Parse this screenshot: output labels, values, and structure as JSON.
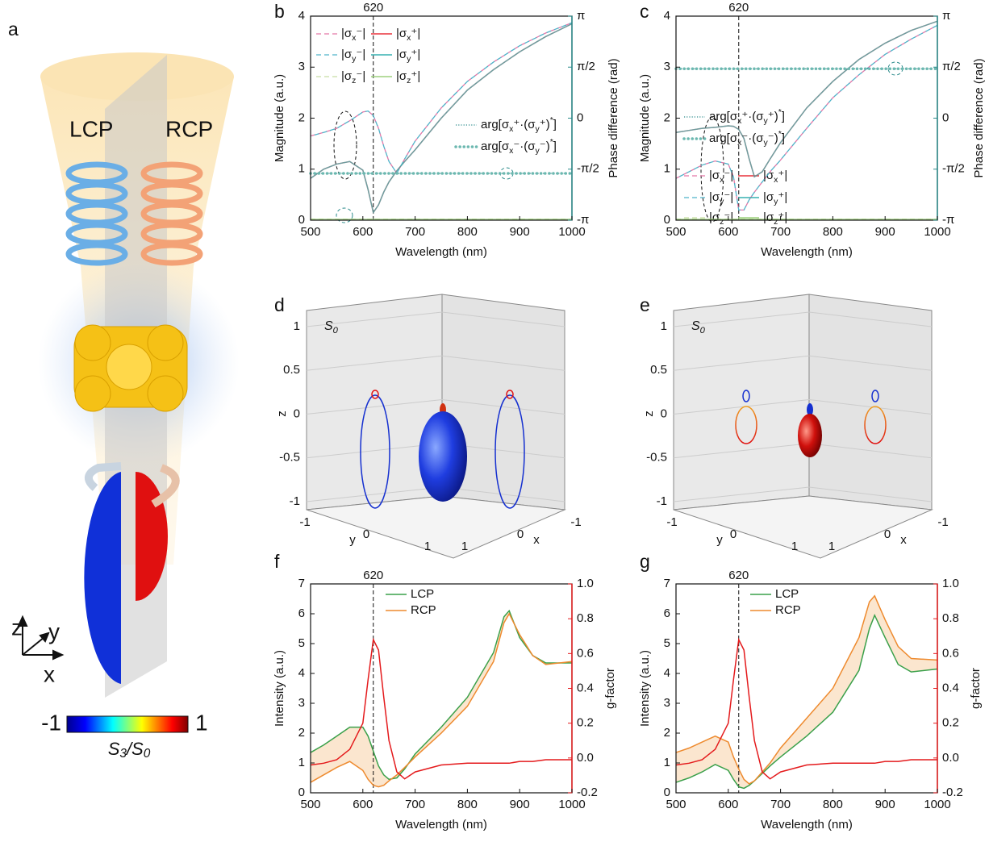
{
  "panel_labels": [
    "a",
    "b",
    "c",
    "d",
    "e",
    "f",
    "g"
  ],
  "illustration": {
    "lcp": "LCP",
    "rcp": "RCP",
    "axes": {
      "z": "z",
      "y": "y",
      "x": "x"
    },
    "colorbar": {
      "min": -1,
      "max": 1,
      "label": "S3/S0"
    }
  },
  "chart_data": [
    {
      "type": "line",
      "xlabel": "Wavelength (nm)",
      "ylabel": "Magnitude (a.u.)",
      "y2label": "Phase difference (rad)",
      "xlim": [
        500,
        1000
      ],
      "xticks": [
        500,
        600,
        700,
        800,
        900,
        1000
      ],
      "ylim": [
        0,
        4
      ],
      "yticks": [
        0,
        1,
        2,
        3,
        4
      ],
      "y2lim": [
        -3.14159,
        3.14159
      ],
      "y2ticks": [
        {
          "value": -3.14159,
          "label": "-π"
        },
        {
          "value": -1.5708,
          "label": "-π/2"
        },
        0,
        {
          "value": 1.5708,
          "label": "π/2"
        },
        {
          "value": 3.14159,
          "label": "π"
        }
      ],
      "y2color": "#2a8a8a",
      "vline": 620,
      "x": [
        500,
        525,
        550,
        575,
        600,
        610,
        620,
        630,
        640,
        650,
        665,
        680,
        700,
        750,
        800,
        850,
        900,
        950,
        1000
      ],
      "series": [
        {
          "name": "|σx⁻|",
          "color": "#e377a8",
          "style": "dashed",
          "values": [
            1.65,
            1.72,
            1.8,
            1.95,
            2.12,
            2.14,
            2.05,
            1.8,
            1.45,
            1.15,
            0.92,
            1.2,
            1.55,
            2.2,
            2.72,
            3.1,
            3.42,
            3.67,
            3.87
          ]
        },
        {
          "name": "|σx⁺|",
          "color": "#e8323c",
          "style": "solid",
          "values": [
            0.82,
            1.0,
            1.1,
            1.15,
            0.98,
            0.6,
            0.15,
            0.3,
            0.55,
            0.75,
            0.97,
            1.15,
            1.38,
            2.0,
            2.55,
            2.95,
            3.3,
            3.6,
            3.85
          ]
        },
        {
          "name": "|σy⁻|",
          "color": "#4fb3c9",
          "style": "dashed",
          "values": [
            1.65,
            1.72,
            1.8,
            1.95,
            2.12,
            2.14,
            2.05,
            1.8,
            1.45,
            1.15,
            0.92,
            1.2,
            1.55,
            2.2,
            2.72,
            3.1,
            3.42,
            3.67,
            3.87
          ]
        },
        {
          "name": "|σy⁺|",
          "color": "#36b0b0",
          "style": "solid",
          "values": [
            0.82,
            1.0,
            1.1,
            1.15,
            0.98,
            0.6,
            0.15,
            0.3,
            0.55,
            0.75,
            0.97,
            1.15,
            1.38,
            2.0,
            2.55,
            2.95,
            3.3,
            3.6,
            3.85
          ]
        },
        {
          "name": "|σz⁻|",
          "color": "#c6dda4",
          "style": "dashed",
          "values": [
            0.02,
            0.02,
            0.02,
            0.02,
            0.02,
            0.02,
            0.02,
            0.02,
            0.02,
            0.02,
            0.02,
            0.02,
            0.02,
            0.02,
            0.02,
            0.02,
            0.02,
            0.02,
            0.02
          ]
        },
        {
          "name": "|σz⁺|",
          "color": "#9dd07e",
          "style": "solid",
          "values": [
            0.02,
            0.02,
            0.02,
            0.02,
            0.02,
            0.02,
            0.02,
            0.02,
            0.02,
            0.02,
            0.02,
            0.02,
            0.02,
            0.02,
            0.02,
            0.02,
            0.02,
            0.02,
            0.02
          ]
        },
        {
          "name": "arg[σx⁺·(σy⁺)*]",
          "color": "#2a8a8a",
          "style": "dotted",
          "axis": "y2",
          "values": [
            -1.7,
            -1.7,
            -1.7,
            -1.7,
            -1.7,
            -1.7,
            -1.7,
            -1.7,
            -1.7,
            -1.7,
            -1.7,
            -1.7,
            -1.7,
            -1.7,
            -1.7,
            -1.7,
            -1.7,
            -1.7,
            -1.7
          ]
        },
        {
          "name": "arg[σx⁻·(σy⁻)*]",
          "color": "#6cb8b0",
          "style": "bold-dotted",
          "axis": "y2",
          "values": [
            -1.7,
            -1.7,
            -1.7,
            -1.7,
            -1.7,
            -1.7,
            -1.7,
            -1.7,
            -1.7,
            -1.7,
            -1.7,
            -1.7,
            -1.7,
            -1.7,
            -1.7,
            -1.7,
            -1.7,
            -1.7,
            -1.7
          ]
        }
      ]
    },
    {
      "type": "line",
      "xlabel": "Wavelength (nm)",
      "ylabel": "Magnitude (a.u.)",
      "y2label": "Phase difference (rad)",
      "xlim": [
        500,
        1000
      ],
      "xticks": [
        500,
        600,
        700,
        800,
        900,
        1000
      ],
      "ylim": [
        0,
        4
      ],
      "yticks": [
        0,
        1,
        2,
        3,
        4
      ],
      "y2lim": [
        -3.14159,
        3.14159
      ],
      "y2ticks": [
        {
          "value": -3.14159,
          "label": "-π"
        },
        {
          "value": -1.5708,
          "label": "-π/2"
        },
        0,
        {
          "value": 1.5708,
          "label": "π/2"
        },
        {
          "value": 3.14159,
          "label": "π"
        }
      ],
      "y2color": "#2a8a8a",
      "vline": 620,
      "x": [
        500,
        525,
        550,
        575,
        600,
        610,
        620,
        630,
        640,
        650,
        665,
        680,
        700,
        750,
        800,
        850,
        900,
        950,
        1000
      ],
      "series": [
        {
          "name": "|σx⁻|",
          "color": "#e377a8",
          "style": "dashed",
          "values": [
            0.82,
            0.95,
            1.08,
            1.16,
            1.1,
            0.85,
            0.2,
            0.2,
            0.4,
            0.55,
            0.75,
            0.95,
            1.18,
            1.8,
            2.4,
            2.85,
            3.25,
            3.55,
            3.82
          ]
        },
        {
          "name": "|σx⁺|",
          "color": "#e8323c",
          "style": "solid",
          "values": [
            1.72,
            1.76,
            1.8,
            1.82,
            1.85,
            1.84,
            1.78,
            1.6,
            1.2,
            0.85,
            0.95,
            1.2,
            1.52,
            2.2,
            2.72,
            3.15,
            3.47,
            3.72,
            3.9
          ]
        },
        {
          "name": "|σy⁻|",
          "color": "#4fb3c9",
          "style": "dashed",
          "values": [
            0.82,
            0.95,
            1.08,
            1.16,
            1.1,
            0.85,
            0.2,
            0.2,
            0.4,
            0.55,
            0.75,
            0.95,
            1.18,
            1.8,
            2.4,
            2.85,
            3.25,
            3.55,
            3.82
          ]
        },
        {
          "name": "|σy⁺|",
          "color": "#36b0b0",
          "style": "solid",
          "values": [
            1.72,
            1.76,
            1.8,
            1.82,
            1.85,
            1.84,
            1.78,
            1.6,
            1.2,
            0.85,
            0.95,
            1.2,
            1.52,
            2.2,
            2.72,
            3.15,
            3.47,
            3.72,
            3.9
          ]
        },
        {
          "name": "|σz⁻|",
          "color": "#c6dda4",
          "style": "dashed",
          "values": [
            0.02,
            0.02,
            0.02,
            0.02,
            0.02,
            0.02,
            0.02,
            0.02,
            0.02,
            0.02,
            0.02,
            0.02,
            0.02,
            0.02,
            0.02,
            0.02,
            0.02,
            0.02,
            0.02
          ]
        },
        {
          "name": "|σz⁺|",
          "color": "#9dd07e",
          "style": "solid",
          "values": [
            0.02,
            0.02,
            0.02,
            0.02,
            0.02,
            0.02,
            0.02,
            0.02,
            0.02,
            0.02,
            0.02,
            0.02,
            0.02,
            0.02,
            0.02,
            0.02,
            0.02,
            0.02,
            0.02
          ]
        },
        {
          "name": "arg[σx⁺·(σy⁺)*]",
          "color": "#2a8a8a",
          "style": "dotted",
          "axis": "y2",
          "values": [
            1.52,
            1.52,
            1.52,
            1.52,
            1.52,
            1.52,
            1.52,
            1.52,
            1.52,
            1.52,
            1.52,
            1.52,
            1.52,
            1.52,
            1.52,
            1.52,
            1.52,
            1.52,
            1.52
          ]
        },
        {
          "name": "arg[σx⁻·(σy⁻)*]",
          "color": "#6cb8b0",
          "style": "bold-dotted",
          "axis": "y2",
          "values": [
            1.52,
            1.52,
            1.52,
            1.52,
            1.52,
            1.52,
            1.52,
            1.52,
            1.52,
            1.52,
            1.52,
            1.52,
            1.52,
            1.52,
            1.52,
            1.52,
            1.52,
            1.52,
            1.52
          ]
        }
      ]
    },
    {
      "type": "surface3d",
      "annotation": "S0",
      "xlabel": "x",
      "ylabel": "y",
      "zlabel": "z",
      "xlim": [
        -1,
        1
      ],
      "ylim": [
        -1,
        1
      ],
      "zlim": [
        -1,
        1
      ],
      "xticks": [
        -1,
        0,
        1
      ],
      "yticks": [
        -1,
        0,
        1
      ],
      "zticks": [
        -1,
        -0.5,
        0,
        0.5,
        1
      ]
    },
    {
      "type": "surface3d",
      "annotation": "S0",
      "xlabel": "x",
      "ylabel": "y",
      "zlabel": "z",
      "xlim": [
        -1,
        1
      ],
      "ylim": [
        -1,
        1
      ],
      "zlim": [
        -1,
        1
      ],
      "xticks": [
        -1,
        0,
        1
      ],
      "yticks": [
        -1,
        0,
        1
      ],
      "zticks": [
        -1,
        -0.5,
        0,
        0.5,
        1
      ]
    },
    {
      "type": "line",
      "xlabel": "Wavelength (nm)",
      "ylabel": "Intensity (a.u.)",
      "y2label": "g-factor",
      "xlim": [
        500,
        1000
      ],
      "xticks": [
        500,
        600,
        700,
        800,
        900,
        1000
      ],
      "ylim": [
        0,
        7
      ],
      "yticks": [
        0,
        1,
        2,
        3,
        4,
        5,
        6,
        7
      ],
      "y2lim": [
        -0.2,
        1.0
      ],
      "y2ticks": [
        -0.2,
        {
          "value": 0,
          "label": "0.0"
        },
        0.2,
        0.4,
        0.6,
        0.8,
        {
          "value": 1,
          "label": "1.0"
        }
      ],
      "y2color": "#e41a1c",
      "vline": 620,
      "fill_between": {
        "series": [
          0,
          1
        ],
        "color": "#fbe6cf"
      },
      "x": [
        500,
        525,
        550,
        575,
        600,
        610,
        620,
        630,
        640,
        650,
        665,
        680,
        700,
        750,
        800,
        850,
        870,
        880,
        900,
        925,
        950,
        1000
      ],
      "series": [
        {
          "name": "LCP",
          "color": "#3aa04a",
          "style": "solid",
          "values": [
            1.35,
            1.6,
            1.9,
            2.2,
            2.2,
            1.9,
            1.4,
            0.9,
            0.6,
            0.45,
            0.5,
            0.8,
            1.3,
            2.2,
            3.2,
            4.7,
            5.9,
            6.1,
            5.2,
            4.6,
            4.35,
            4.35
          ]
        },
        {
          "name": "RCP",
          "color": "#ee8a2e",
          "style": "solid",
          "values": [
            0.35,
            0.6,
            0.85,
            1.05,
            0.75,
            0.45,
            0.25,
            0.2,
            0.25,
            0.4,
            0.6,
            0.85,
            1.2,
            2.0,
            2.9,
            4.4,
            5.7,
            6.0,
            5.3,
            4.6,
            4.3,
            4.4
          ]
        },
        {
          "color": "#e41a1c",
          "style": "solid",
          "axis": "y2",
          "values": [
            -0.04,
            -0.03,
            -0.01,
            0.05,
            0.2,
            0.45,
            0.68,
            0.62,
            0.35,
            0.1,
            -0.08,
            -0.12,
            -0.08,
            -0.04,
            -0.03,
            -0.03,
            -0.03,
            -0.03,
            -0.02,
            -0.02,
            -0.01,
            -0.01
          ]
        }
      ]
    },
    {
      "type": "line",
      "xlabel": "Wavelength (nm)",
      "ylabel": "Intensity (a.u.)",
      "y2label": "g-factor",
      "xlim": [
        500,
        1000
      ],
      "xticks": [
        500,
        600,
        700,
        800,
        900,
        1000
      ],
      "ylim": [
        0,
        7
      ],
      "yticks": [
        0,
        1,
        2,
        3,
        4,
        5,
        6,
        7
      ],
      "y2lim": [
        -0.2,
        1.0
      ],
      "y2ticks": [
        -0.2,
        {
          "value": 0,
          "label": "0.0"
        },
        0.2,
        0.4,
        0.6,
        0.8,
        {
          "value": 1,
          "label": "1.0"
        }
      ],
      "y2color": "#e41a1c",
      "vline": 620,
      "fill_between": {
        "series": [
          0,
          1
        ],
        "color": "#fbe6cf"
      },
      "x": [
        500,
        525,
        550,
        575,
        600,
        610,
        620,
        630,
        640,
        650,
        665,
        680,
        700,
        750,
        800,
        850,
        870,
        880,
        900,
        925,
        950,
        1000
      ],
      "series": [
        {
          "name": "LCP",
          "color": "#3aa04a",
          "style": "solid",
          "values": [
            0.35,
            0.5,
            0.7,
            0.95,
            0.75,
            0.45,
            0.2,
            0.15,
            0.25,
            0.4,
            0.65,
            0.9,
            1.2,
            1.9,
            2.7,
            4.1,
            5.5,
            5.95,
            5.2,
            4.3,
            4.05,
            4.15
          ]
        },
        {
          "name": "RCP",
          "color": "#ee8a2e",
          "style": "solid",
          "values": [
            1.35,
            1.5,
            1.7,
            1.9,
            1.7,
            1.2,
            0.8,
            0.45,
            0.3,
            0.4,
            0.7,
            1.0,
            1.5,
            2.5,
            3.5,
            5.2,
            6.4,
            6.6,
            5.8,
            4.9,
            4.5,
            4.45
          ]
        },
        {
          "color": "#e41a1c",
          "style": "solid",
          "axis": "y2",
          "values": [
            -0.04,
            -0.03,
            -0.01,
            0.05,
            0.2,
            0.45,
            0.68,
            0.62,
            0.35,
            0.1,
            -0.08,
            -0.12,
            -0.08,
            -0.04,
            -0.03,
            -0.03,
            -0.03,
            -0.03,
            -0.02,
            -0.02,
            -0.01,
            -0.01
          ]
        }
      ]
    }
  ]
}
